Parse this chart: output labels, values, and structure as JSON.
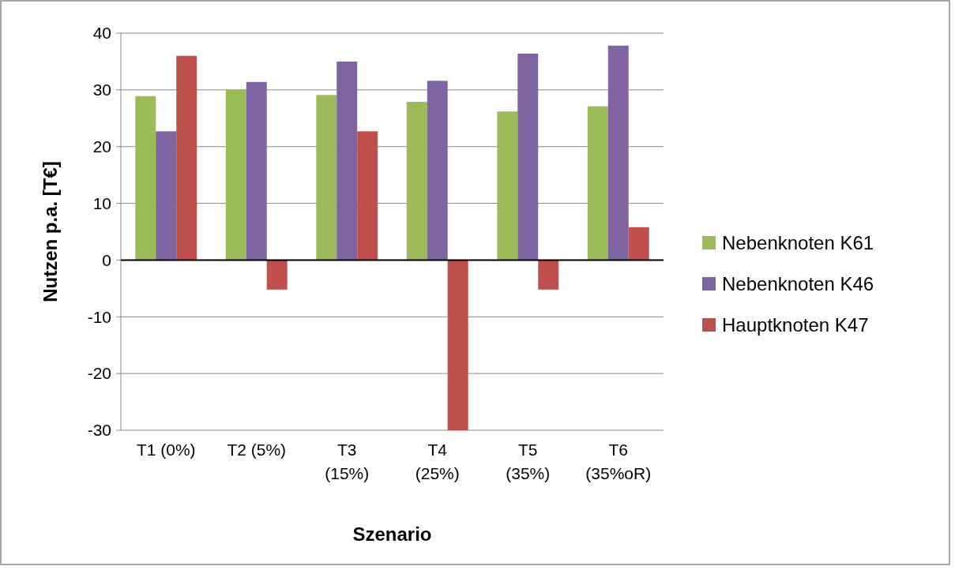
{
  "chart_data": {
    "type": "bar",
    "xlabel": "Szenario",
    "ylabel": "Nutzen p.a. [T€]",
    "categories": [
      "T1 (0%)",
      "T2 (5%)",
      "T3 (15%)",
      "T4 (25%)",
      "T5 (35%)",
      "T6 (35%oR)"
    ],
    "series": [
      {
        "name": "Nebenknoten K61",
        "color": "#9bbb59",
        "values": [
          28.9,
          30.0,
          29.1,
          27.9,
          26.2,
          27.1
        ]
      },
      {
        "name": "Nebenknoten K46",
        "color": "#8064a2",
        "values": [
          22.7,
          31.4,
          35.0,
          31.6,
          36.4,
          37.8
        ]
      },
      {
        "name": "Hauptknoten K47",
        "color": "#c0504d",
        "values": [
          36.0,
          -5.2,
          22.7,
          -30,
          -5.2,
          5.8
        ]
      }
    ],
    "ylim": [
      -30,
      40
    ],
    "yticks": [
      -30,
      -20,
      -10,
      0,
      10,
      20,
      30,
      40
    ],
    "grid": "y",
    "legend": "right"
  }
}
